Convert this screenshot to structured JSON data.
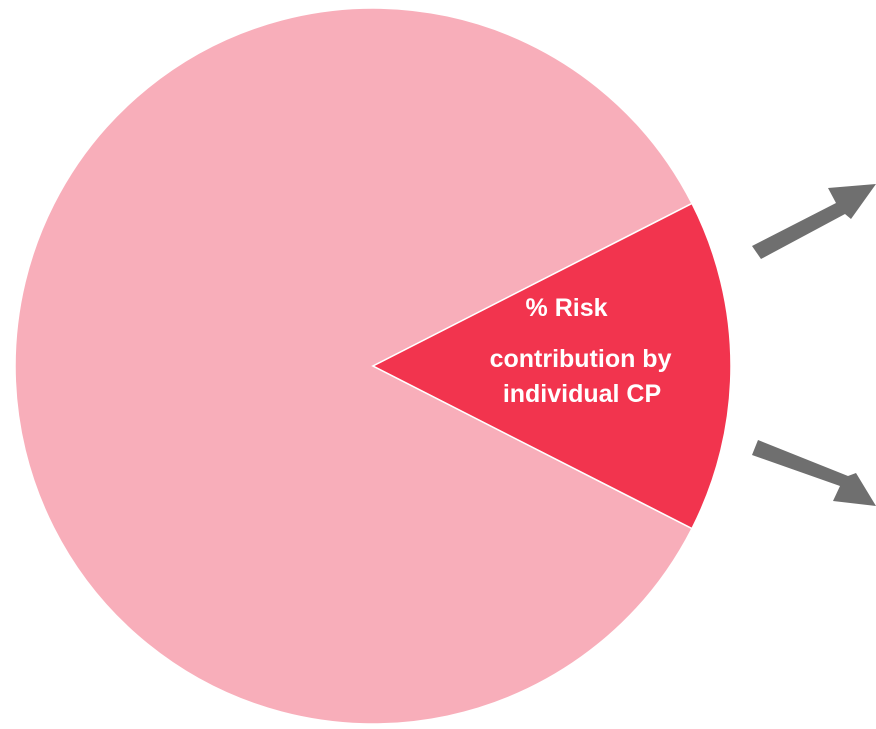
{
  "chart_data": {
    "type": "pie",
    "slices": [
      {
        "label": "",
        "value": 85,
        "color": "#f8aeba"
      },
      {
        "label": "% Risk contribution by individual CP",
        "value": 15,
        "color": "#f2344e"
      }
    ],
    "title": "",
    "annotations": [
      {
        "lines": [
          "% Risk",
          "contribution by",
          "individual CP"
        ]
      }
    ],
    "arrow_color": "#6f6f6f"
  }
}
